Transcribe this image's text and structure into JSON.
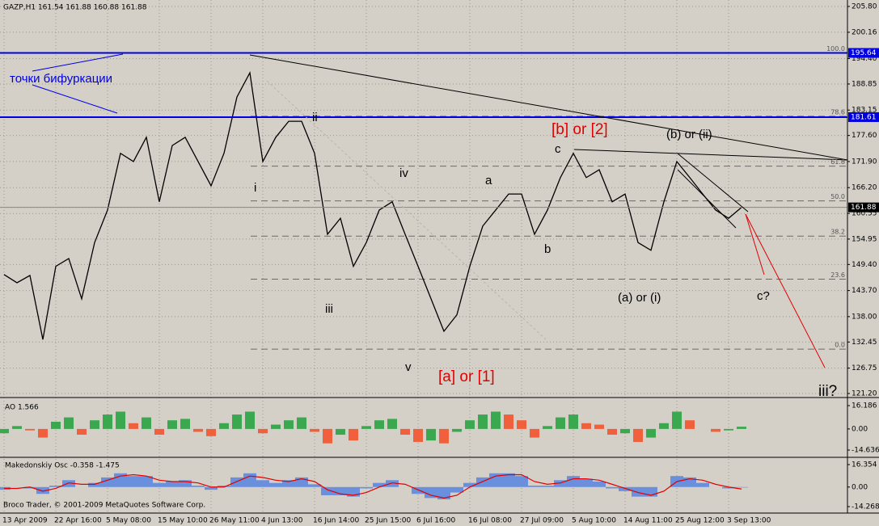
{
  "copyright": "Broco Trader, © 2001-2009 MetaQuotes Software Corp.",
  "chart_data": [
    {
      "type": "line",
      "title": "GAZP,H1  161.54 161.88 160.88 161.88",
      "color": "#000000",
      "categories": [
        "13 Apr 2009",
        null,
        null,
        null,
        "22 Apr 16:00",
        null,
        null,
        null,
        "5 May 08:00",
        null,
        null,
        null,
        "15 May 10:00",
        null,
        null,
        null,
        "26 May 11:00",
        null,
        null,
        null,
        "4 Jun 13:00",
        null,
        null,
        null,
        "16 Jun 14:00",
        null,
        null,
        null,
        "25 Jun 15:00",
        null,
        null,
        null,
        "6 Jul 16:00",
        null,
        null,
        null,
        "16 Jul 08:00",
        null,
        null,
        null,
        "27 Jul 09:00",
        null,
        null,
        null,
        "5 Aug 10:00",
        null,
        null,
        null,
        "14 Aug 11:00",
        null,
        null,
        null,
        "25 Aug 12:00",
        null,
        null,
        null,
        "3 Sep 13:00",
        null
      ],
      "values": [
        147.2,
        145.4,
        147,
        133,
        149,
        150.7,
        141.9,
        154.2,
        161.3,
        173.7,
        171.9,
        177.2,
        163.1,
        175.4,
        177.2,
        171.9,
        166.6,
        173.7,
        186,
        191.3,
        171.9,
        177.2,
        180.7,
        180.7,
        173.7,
        156,
        159.5,
        149,
        154.2,
        161.3,
        163.1,
        156,
        149,
        141.9,
        134.8,
        138.4,
        149,
        157.8,
        161.3,
        164.8,
        164.8,
        156,
        161.3,
        168.4,
        173.7,
        168.4,
        170.1,
        163.1,
        164.8,
        154.2,
        152.5,
        163.1,
        171.9,
        168.4,
        164.8,
        161.3,
        159.5,
        161.88
      ],
      "ylim": [
        120.67,
        207.21
      ],
      "yticks": [
        {
          "value": 205.8,
          "label": "205.80"
        },
        200.16,
        {
          "value": 194.4,
          "label": "194.40"
        },
        188.85,
        183.15,
        {
          "value": 177.6,
          "label": "177.60"
        },
        {
          "value": 171.9,
          "label": "171.90"
        },
        {
          "value": 166.2,
          "label": "166.20"
        },
        160.55,
        154.95,
        {
          "value": 149.4,
          "label": "149.40"
        },
        {
          "value": 143.7,
          "label": "143.70"
        },
        {
          "value": 138,
          "label": "138.00"
        },
        132.45,
        126.75,
        {
          "value": 121.2,
          "label": "121.20"
        }
      ],
      "grid": true,
      "price_markers": [
        {
          "value": 195.64,
          "color": "#0000e0"
        },
        {
          "value": 181.61,
          "color": "#0000e0"
        },
        {
          "value": 161.88,
          "color": "#000000"
        }
      ],
      "fib_levels": [
        {
          "level": "100.0",
          "value": 195.64
        },
        {
          "level": "78.6",
          "value": 181.8
        },
        {
          "level": "61.8",
          "value": 170.9
        },
        {
          "level": "50.0",
          "value": 163.3
        },
        {
          "level": "38.2",
          "value": 155.6
        },
        {
          "level": "23.6",
          "value": 146.2
        },
        {
          "level": "0.0",
          "value": 130.9
        }
      ],
      "annotations": [
        "точки бифуркации",
        "ii",
        "i",
        "iii",
        "iv",
        "v",
        "[a] or [1]",
        "a",
        "b",
        "c",
        "[b] or [2]",
        "(b) or (ii)",
        "(a) or (i)",
        "c?",
        "iii?"
      ]
    },
    {
      "type": "bar",
      "title": "AO 1.566",
      "up_color": "#3aa84e",
      "down_color": "#f0603c",
      "values": [
        -3,
        2,
        -1,
        -6,
        5,
        8,
        -4,
        6,
        10,
        12,
        4,
        8,
        -4,
        6,
        7,
        -2,
        -5,
        4,
        10,
        12,
        -3,
        3,
        6,
        8,
        -2,
        -10,
        -4,
        -8,
        2,
        6,
        7,
        -4,
        -9,
        -8,
        -10,
        -2,
        6,
        10,
        12,
        10,
        6,
        -6,
        2,
        8,
        10,
        4,
        3,
        -4,
        -3,
        -9,
        -6,
        4,
        12,
        6,
        0,
        -2,
        -1,
        1.566
      ],
      "ylim": [
        -19.12,
        20.67
      ],
      "yticks": [
        16.186,
        {
          "value": 0,
          "label": "0.00"
        },
        -14.636
      ]
    },
    {
      "type": "bar",
      "title": "Makedonskiy Osc -0.358 -1.475",
      "series": [
        {
          "type": "bar",
          "color": "#6a8fdc",
          "values": [
            -2,
            0,
            -1,
            -5,
            1,
            5,
            0,
            3,
            7,
            10,
            8,
            8,
            3,
            4,
            5,
            1,
            -2,
            1,
            7,
            10,
            5,
            3,
            5,
            7,
            2,
            -6,
            -6,
            -7,
            -1,
            3,
            5,
            0,
            -5,
            -8,
            -9,
            -4,
            3,
            7,
            10,
            10,
            8,
            1,
            1,
            5,
            8,
            6,
            4,
            -1,
            -3,
            -7,
            -7,
            0,
            8,
            7,
            3,
            0,
            -1,
            -0.358
          ]
        },
        {
          "type": "line",
          "color": "#e00000",
          "values": [
            -1,
            -1,
            0,
            -3,
            -1,
            3,
            2,
            2,
            5,
            8,
            9,
            8,
            5,
            4,
            4,
            3,
            0,
            0,
            4,
            8,
            7,
            5,
            4,
            6,
            4,
            -2,
            -5,
            -6,
            -4,
            0,
            3,
            2,
            -2,
            -6,
            -8,
            -6,
            0,
            4,
            8,
            9,
            9,
            4,
            2,
            3,
            6,
            6,
            5,
            2,
            -1,
            -4,
            -6,
            -3,
            4,
            6,
            5,
            2,
            0,
            -1.475
          ]
        }
      ],
      "ylim": [
        -18.39,
        20.48
      ],
      "yticks": [
        16.354,
        {
          "value": 0,
          "label": "0.00"
        },
        -14.268
      ]
    }
  ]
}
